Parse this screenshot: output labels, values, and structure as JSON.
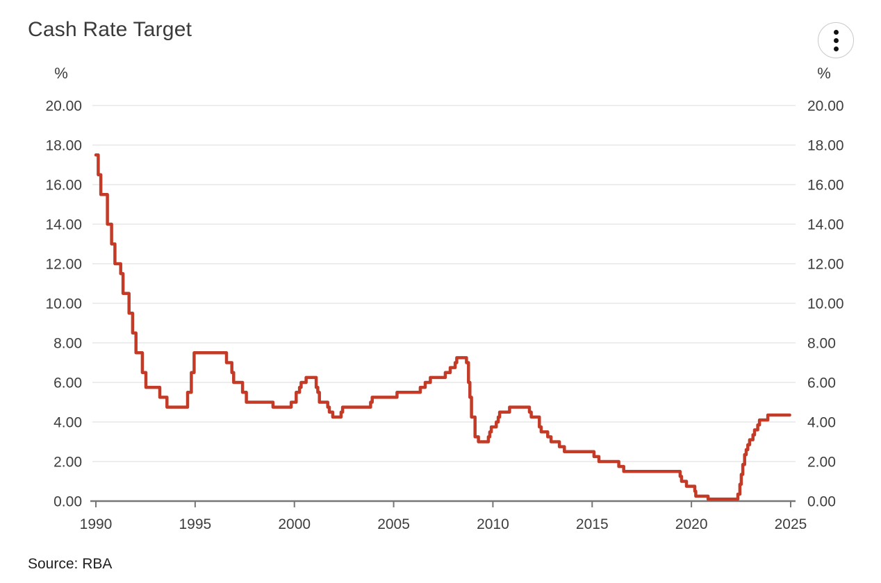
{
  "header": {
    "title": "Cash Rate Target"
  },
  "menu": {
    "icon": "kebab-menu-icon"
  },
  "axes": {
    "unit_left": "%",
    "unit_right": "%",
    "y_tick_labels": [
      "20.00",
      "18.00",
      "16.00",
      "14.00",
      "12.00",
      "10.00",
      "8.00",
      "6.00",
      "4.00",
      "2.00",
      "0.00"
    ],
    "x_tick_labels": [
      "1990",
      "1995",
      "2000",
      "2005",
      "2010",
      "2015",
      "2020",
      "2025"
    ]
  },
  "footer": {
    "source": "Source: RBA"
  },
  "colors": {
    "line": "#c33b27",
    "grid": "#e7e7e7",
    "axis": "#767676",
    "text": "#3d3d3d"
  },
  "chart_data": {
    "type": "line",
    "title": "Cash Rate Target",
    "ylabel": "%",
    "xlim": [
      1989.72,
      2025.25
    ],
    "ylim": [
      0,
      20
    ],
    "y_tick_step": 2,
    "x_ticks": [
      1990,
      1995,
      2000,
      2005,
      2010,
      2015,
      2020,
      2025
    ],
    "grid": true,
    "legend": "none",
    "series": [
      {
        "name": "Cash Rate Target",
        "color": "#c33b27",
        "step": true,
        "end_x": 2024.95,
        "points": [
          [
            1990.0,
            17.5
          ],
          [
            1990.12,
            16.5
          ],
          [
            1990.25,
            15.5
          ],
          [
            1990.58,
            14.0
          ],
          [
            1990.79,
            13.0
          ],
          [
            1990.96,
            12.0
          ],
          [
            1991.25,
            11.5
          ],
          [
            1991.37,
            10.5
          ],
          [
            1991.67,
            9.5
          ],
          [
            1991.85,
            8.5
          ],
          [
            1992.02,
            7.5
          ],
          [
            1992.34,
            6.5
          ],
          [
            1992.52,
            5.75
          ],
          [
            1993.22,
            5.25
          ],
          [
            1993.58,
            4.75
          ],
          [
            1994.62,
            5.5
          ],
          [
            1994.81,
            6.5
          ],
          [
            1994.95,
            7.5
          ],
          [
            1996.58,
            7.0
          ],
          [
            1996.85,
            6.5
          ],
          [
            1996.94,
            6.0
          ],
          [
            1997.39,
            5.5
          ],
          [
            1997.58,
            5.0
          ],
          [
            1998.92,
            4.75
          ],
          [
            1999.84,
            5.0
          ],
          [
            2000.09,
            5.5
          ],
          [
            2000.26,
            5.75
          ],
          [
            2000.34,
            6.0
          ],
          [
            2000.59,
            6.25
          ],
          [
            2001.1,
            5.75
          ],
          [
            2001.18,
            5.5
          ],
          [
            2001.26,
            5.0
          ],
          [
            2001.68,
            4.75
          ],
          [
            2001.76,
            4.5
          ],
          [
            2001.93,
            4.25
          ],
          [
            2002.35,
            4.5
          ],
          [
            2002.43,
            4.75
          ],
          [
            2003.84,
            5.0
          ],
          [
            2003.92,
            5.25
          ],
          [
            2005.17,
            5.5
          ],
          [
            2006.34,
            5.75
          ],
          [
            2006.59,
            6.0
          ],
          [
            2006.85,
            6.25
          ],
          [
            2007.6,
            6.5
          ],
          [
            2007.85,
            6.75
          ],
          [
            2008.1,
            7.0
          ],
          [
            2008.18,
            7.25
          ],
          [
            2008.67,
            7.0
          ],
          [
            2008.77,
            6.0
          ],
          [
            2008.84,
            5.25
          ],
          [
            2008.92,
            4.25
          ],
          [
            2009.1,
            3.25
          ],
          [
            2009.27,
            3.0
          ],
          [
            2009.77,
            3.25
          ],
          [
            2009.84,
            3.5
          ],
          [
            2009.92,
            3.75
          ],
          [
            2010.17,
            4.0
          ],
          [
            2010.27,
            4.25
          ],
          [
            2010.34,
            4.5
          ],
          [
            2010.84,
            4.75
          ],
          [
            2011.84,
            4.5
          ],
          [
            2011.93,
            4.25
          ],
          [
            2012.34,
            3.75
          ],
          [
            2012.43,
            3.5
          ],
          [
            2012.76,
            3.25
          ],
          [
            2012.93,
            3.0
          ],
          [
            2013.35,
            2.75
          ],
          [
            2013.6,
            2.5
          ],
          [
            2015.09,
            2.25
          ],
          [
            2015.34,
            2.0
          ],
          [
            2016.34,
            1.75
          ],
          [
            2016.59,
            1.5
          ],
          [
            2019.43,
            1.25
          ],
          [
            2019.5,
            1.0
          ],
          [
            2019.75,
            0.75
          ],
          [
            2020.17,
            0.5
          ],
          [
            2020.22,
            0.25
          ],
          [
            2020.84,
            0.1
          ],
          [
            2022.34,
            0.35
          ],
          [
            2022.44,
            0.85
          ],
          [
            2022.51,
            1.35
          ],
          [
            2022.59,
            1.85
          ],
          [
            2022.68,
            2.35
          ],
          [
            2022.76,
            2.6
          ],
          [
            2022.84,
            2.85
          ],
          [
            2022.93,
            3.1
          ],
          [
            2023.1,
            3.35
          ],
          [
            2023.18,
            3.6
          ],
          [
            2023.34,
            3.85
          ],
          [
            2023.43,
            4.1
          ],
          [
            2023.85,
            4.35
          ]
        ]
      }
    ]
  }
}
